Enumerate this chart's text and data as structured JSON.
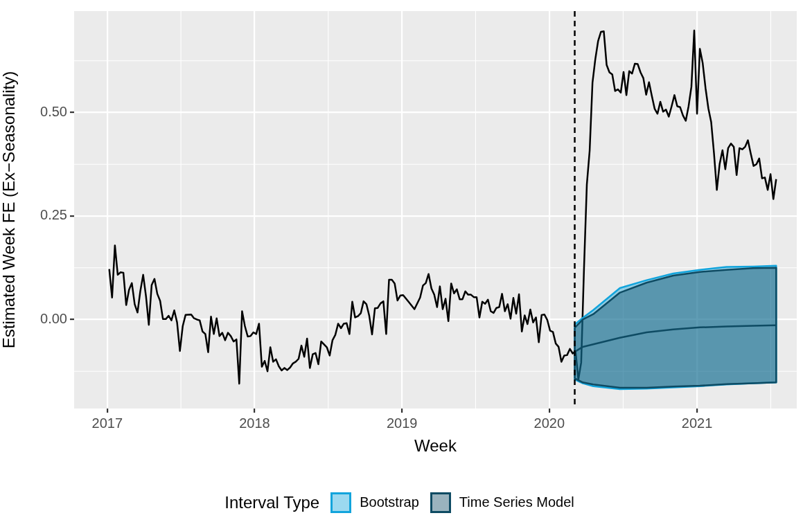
{
  "chart_data": {
    "type": "line",
    "xlabel": "Week",
    "ylabel": "Estimated Week FE (Ex−Seasonality)",
    "legend_title": "Interval Type",
    "legend": "bottom",
    "grid": true,
    "marker": "none",
    "line_style": "solid",
    "xlim": [
      "2016-10-11",
      "2021-09-05"
    ],
    "xticks": [
      "2017",
      "2018",
      "2019",
      "2020",
      "2021"
    ],
    "ylim": [
      -0.215,
      0.745
    ],
    "yticks": [
      {
        "value": 0,
        "label": "0.00"
      },
      {
        "value": 0.25,
        "label": "0.25"
      },
      {
        "value": 0.5,
        "label": "0.50"
      }
    ],
    "ref_lines": [
      {
        "axis": "x",
        "value": "2020-03-04",
        "color": "#000000",
        "line_style": "dashed"
      }
    ],
    "series": [
      {
        "color": "#000000",
        "x": [
          "2017-01-06",
          "2017-01-13",
          "2017-01-20",
          "2017-01-27",
          "2017-02-03",
          "2017-02-10",
          "2017-02-17",
          "2017-02-24",
          "2017-03-03",
          "2017-03-10",
          "2017-03-17",
          "2017-03-24",
          "2017-03-31",
          "2017-04-07",
          "2017-04-14",
          "2017-04-21",
          "2017-04-28",
          "2017-05-05",
          "2017-05-12",
          "2017-05-19",
          "2017-05-26",
          "2017-06-02",
          "2017-06-09",
          "2017-06-16",
          "2017-06-23",
          "2017-06-30",
          "2017-07-07",
          "2017-07-14",
          "2017-07-28",
          "2017-08-04",
          "2017-08-11",
          "2017-08-18",
          "2017-08-25",
          "2017-09-01",
          "2017-09-08",
          "2017-09-15",
          "2017-09-22",
          "2017-09-29",
          "2017-10-06",
          "2017-10-13",
          "2017-10-20",
          "2017-10-27",
          "2017-11-03",
          "2017-11-10",
          "2017-11-17",
          "2017-11-24",
          "2017-12-01",
          "2017-12-08",
          "2017-12-15",
          "2017-12-22",
          "2017-12-29",
          "2018-01-05",
          "2018-01-12",
          "2018-01-19",
          "2018-01-26",
          "2018-02-02",
          "2018-02-09",
          "2018-02-16",
          "2018-02-23",
          "2018-03-02",
          "2018-03-09",
          "2018-03-16",
          "2018-03-23",
          "2018-03-30",
          "2018-04-06",
          "2018-04-13",
          "2018-04-20",
          "2018-04-27",
          "2018-05-04",
          "2018-05-11",
          "2018-05-18",
          "2018-05-25",
          "2018-06-01",
          "2018-06-08",
          "2018-06-15",
          "2018-06-22",
          "2018-06-29",
          "2018-07-06",
          "2018-07-13",
          "2018-07-20",
          "2018-07-27",
          "2018-08-03",
          "2018-08-10",
          "2018-08-17",
          "2018-08-24",
          "2018-08-31",
          "2018-09-07",
          "2018-09-14",
          "2018-09-21",
          "2018-09-28",
          "2018-10-05",
          "2018-10-12",
          "2018-10-19",
          "2018-10-26",
          "2018-11-02",
          "2018-11-09",
          "2018-11-16",
          "2018-11-23",
          "2018-11-30",
          "2018-12-07",
          "2018-12-14",
          "2018-12-21",
          "2018-12-28",
          "2019-01-04",
          "2019-01-18",
          "2019-02-01",
          "2019-02-15",
          "2019-02-22",
          "2019-03-01",
          "2019-03-08",
          "2019-03-15",
          "2019-03-22",
          "2019-03-29",
          "2019-04-05",
          "2019-04-12",
          "2019-04-19",
          "2019-04-26",
          "2019-05-03",
          "2019-05-10",
          "2019-05-17",
          "2019-05-24",
          "2019-05-31",
          "2019-06-07",
          "2019-06-14",
          "2019-06-21",
          "2019-06-28",
          "2019-07-05",
          "2019-07-12",
          "2019-07-19",
          "2019-07-26",
          "2019-08-02",
          "2019-08-09",
          "2019-08-16",
          "2019-08-23",
          "2019-08-30",
          "2019-09-06",
          "2019-09-13",
          "2019-09-20",
          "2019-09-27",
          "2019-10-04",
          "2019-10-11",
          "2019-10-18",
          "2019-10-25",
          "2019-11-01",
          "2019-11-08",
          "2019-11-15",
          "2019-11-22",
          "2019-11-29",
          "2019-12-06",
          "2019-12-13",
          "2019-12-20",
          "2019-12-27",
          "2020-01-03",
          "2020-01-10",
          "2020-01-17",
          "2020-01-24",
          "2020-01-31",
          "2020-02-07",
          "2020-02-14",
          "2020-02-21",
          "2020-02-28",
          "2020-03-06",
          "2020-03-13",
          "2020-03-20",
          "2020-03-27",
          "2020-04-03",
          "2020-04-10",
          "2020-04-17",
          "2020-04-24",
          "2020-05-01",
          "2020-05-08",
          "2020-05-15",
          "2020-05-22",
          "2020-05-29",
          "2020-06-05",
          "2020-06-12",
          "2020-06-19",
          "2020-06-26",
          "2020-07-03",
          "2020-07-10",
          "2020-07-17",
          "2020-07-24",
          "2020-07-31",
          "2020-08-07",
          "2020-08-14",
          "2020-08-21",
          "2020-08-28",
          "2020-09-04",
          "2020-09-11",
          "2020-09-18",
          "2020-09-25",
          "2020-10-02",
          "2020-10-09",
          "2020-10-16",
          "2020-10-23",
          "2020-10-30",
          "2020-11-06",
          "2020-11-13",
          "2020-11-20",
          "2020-11-27",
          "2020-12-04",
          "2020-12-11",
          "2020-12-18",
          "2020-12-25",
          "2021-01-01",
          "2021-01-08",
          "2021-01-15",
          "2021-01-22",
          "2021-01-29",
          "2021-02-05",
          "2021-02-12",
          "2021-02-19",
          "2021-02-26",
          "2021-03-05",
          "2021-03-12",
          "2021-03-19",
          "2021-03-26",
          "2021-04-02",
          "2021-04-09",
          "2021-04-16",
          "2021-04-23",
          "2021-04-30",
          "2021-05-07",
          "2021-05-14",
          "2021-05-21",
          "2021-05-28",
          "2021-06-04",
          "2021-06-11",
          "2021-06-18",
          "2021-06-25",
          "2021-07-02",
          "2021-07-09",
          "2021-07-16"
        ],
        "values": [
          0.122,
          0.053,
          0.179,
          0.108,
          0.114,
          0.113,
          0.035,
          0.072,
          0.088,
          0.037,
          0.017,
          0.069,
          0.108,
          0.056,
          -0.013,
          0.083,
          0.098,
          0.062,
          0.045,
          0.001,
          0.001,
          0.009,
          -0.002,
          0.022,
          -0.007,
          -0.076,
          -0.016,
          0.011,
          0.012,
          0.003,
          0,
          -0.002,
          -0.029,
          -0.035,
          -0.079,
          0.007,
          -0.035,
          0.003,
          -0.04,
          -0.032,
          -0.05,
          -0.032,
          -0.04,
          -0.053,
          -0.048,
          -0.155,
          0.02,
          -0.016,
          -0.041,
          -0.04,
          -0.031,
          -0.035,
          -0.01,
          -0.114,
          -0.1,
          -0.125,
          -0.067,
          -0.102,
          -0.096,
          -0.113,
          -0.123,
          -0.117,
          -0.122,
          -0.116,
          -0.106,
          -0.102,
          -0.095,
          -0.063,
          -0.09,
          -0.046,
          -0.117,
          -0.084,
          -0.081,
          -0.108,
          -0.053,
          -0.06,
          -0.067,
          -0.087,
          -0.05,
          -0.037,
          -0.01,
          -0.021,
          -0.01,
          -0.009,
          -0.035,
          0.043,
          0.005,
          0.008,
          0.015,
          0.044,
          0.037,
          0.009,
          -0.036,
          0.027,
          0.028,
          0.039,
          0.044,
          -0.035,
          0.096,
          0.096,
          0.087,
          0.046,
          0.058,
          0.059,
          0.042,
          0.025,
          0.053,
          0.082,
          0.088,
          0.11,
          0.075,
          0.06,
          0.03,
          0.08,
          0.025,
          0.05,
          -0.004,
          0.087,
          0.063,
          0.073,
          0.049,
          0.049,
          0.068,
          0.06,
          0.06,
          0.054,
          0.054,
          0.005,
          0.043,
          0.038,
          0.048,
          0.02,
          0.016,
          0.028,
          0.03,
          0.062,
          0.02,
          0.037,
          0.002,
          0.052,
          0.014,
          0.061,
          -0.029,
          0.01,
          -0.011,
          0.024,
          -0.007,
          0.005,
          -0.055,
          0.011,
          0.012,
          -0.001,
          -0.027,
          -0.03,
          -0.058,
          -0.066,
          -0.102,
          -0.087,
          -0.086,
          -0.071,
          -0.082,
          -0.076,
          -0.145,
          -0.104,
          0.124,
          0.326,
          0.408,
          0.572,
          0.629,
          0.673,
          0.695,
          0.696,
          0.615,
          0.597,
          0.592,
          0.552,
          0.556,
          0.548,
          0.598,
          0.542,
          0.6,
          0.594,
          0.618,
          0.617,
          0.597,
          0.583,
          0.543,
          0.573,
          0.54,
          0.509,
          0.497,
          0.526,
          0.502,
          0.507,
          0.49,
          0.515,
          0.542,
          0.515,
          0.513,
          0.493,
          0.48,
          0.515,
          0.562,
          0.698,
          0.497,
          0.654,
          0.619,
          0.559,
          0.51,
          0.477,
          0.401,
          0.313,
          0.376,
          0.409,
          0.363,
          0.414,
          0.425,
          0.417,
          0.349,
          0.414,
          0.411,
          0.417,
          0.433,
          0.401,
          0.371,
          0.375,
          0.389,
          0.341,
          0.343,
          0.313,
          0.351,
          0.291,
          0.339
        ]
      },
      {
        "name": "Bootstrap",
        "type": "area",
        "color": "#12a4dc",
        "x": [
          "2020-03-04",
          "2020-03-24",
          "2020-04-19",
          "2020-06-24",
          "2020-08-29",
          "2020-11-03",
          "2021-01-08",
          "2021-03-15",
          "2021-05-20",
          "2021-07-16"
        ],
        "values": [
          null,
          null,
          null,
          null,
          null,
          null,
          null,
          null,
          null,
          null
        ],
        "lower": [
          -0.145,
          -0.154,
          -0.161,
          -0.168,
          -0.167,
          -0.164,
          -0.161,
          -0.157,
          -0.154,
          -0.152
        ],
        "upper": [
          -0.012,
          0.004,
          0.023,
          0.076,
          0.095,
          0.111,
          0.12,
          0.127,
          0.128,
          0.13
        ]
      },
      {
        "name": "Time Series Model",
        "color": "#0e4b63",
        "x": [
          "2020-03-04",
          "2020-03-24",
          "2020-04-19",
          "2020-06-24",
          "2020-08-29",
          "2020-11-03",
          "2021-01-08",
          "2021-03-15",
          "2021-05-20",
          "2021-07-16"
        ],
        "values": [
          -0.078,
          -0.066,
          -0.06,
          -0.044,
          -0.031,
          -0.024,
          -0.019,
          -0.017,
          -0.015,
          -0.014
        ],
        "lower": [
          -0.142,
          -0.152,
          -0.157,
          -0.165,
          -0.165,
          -0.162,
          -0.16,
          -0.156,
          -0.154,
          -0.152
        ],
        "upper": [
          -0.02,
          0.0,
          0.013,
          0.065,
          0.089,
          0.106,
          0.115,
          0.12,
          0.124,
          0.125
        ]
      }
    ]
  }
}
